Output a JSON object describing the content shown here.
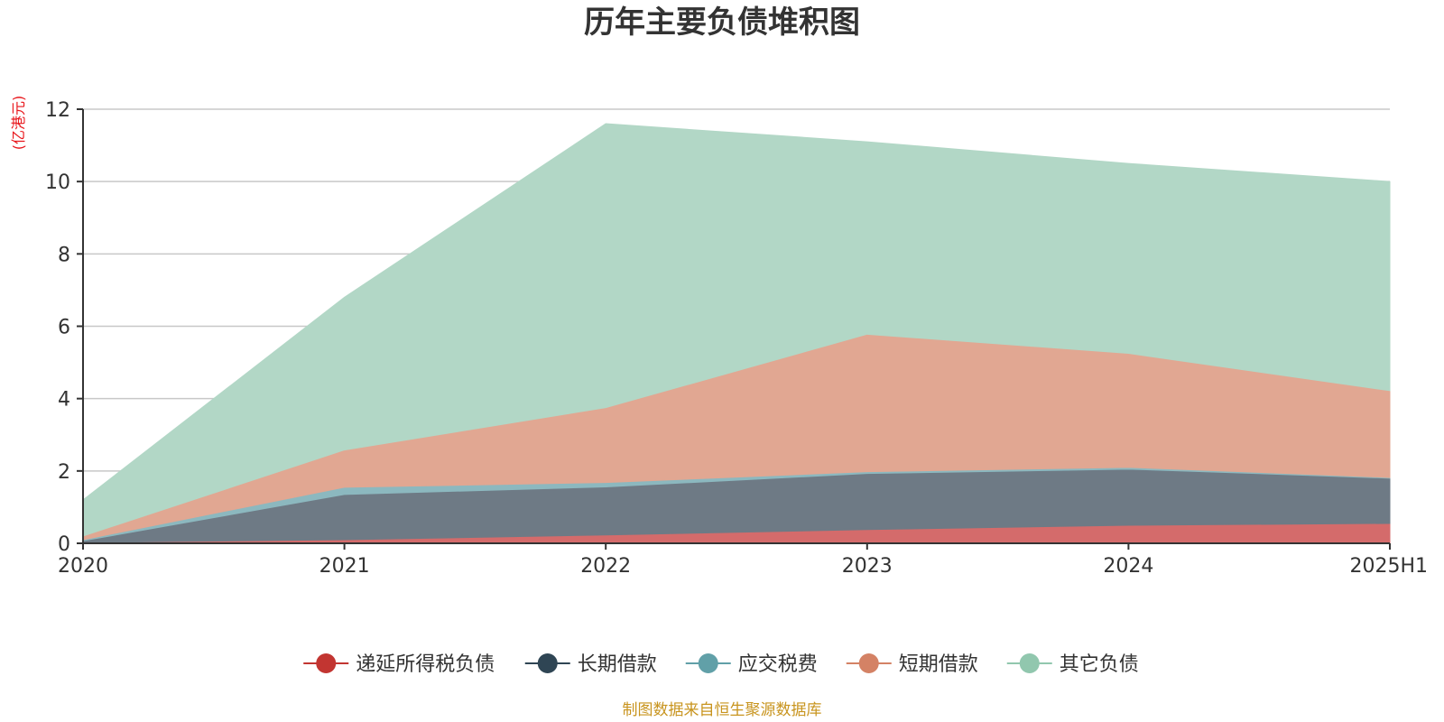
{
  "chart_data": {
    "type": "area",
    "stacked": true,
    "title": "历年主要负债堆积图",
    "ylabel": "(亿港元)",
    "xlabel": "",
    "categories": [
      "2020",
      "2021",
      "2022",
      "2023",
      "2024",
      "2025H1"
    ],
    "ylim": [
      0,
      12
    ],
    "yticks": [
      0,
      2,
      4,
      6,
      8,
      10,
      12
    ],
    "grid": true,
    "legend_position": "bottom",
    "series": [
      {
        "name": "递延所得税负债",
        "color": "#c23531",
        "fill": "#d46b6b",
        "values": [
          0.02,
          0.1,
          0.23,
          0.38,
          0.5,
          0.55
        ]
      },
      {
        "name": "长期借款",
        "color": "#2f4554",
        "fill": "#6e7a85",
        "values": [
          0.05,
          1.25,
          1.33,
          1.55,
          1.55,
          1.25
        ]
      },
      {
        "name": "应交税费",
        "color": "#61a0a8",
        "fill": "#8cb8bf",
        "values": [
          0.03,
          0.2,
          0.12,
          0.05,
          0.05,
          0.02
        ]
      },
      {
        "name": "短期借款",
        "color": "#d48265",
        "fill": "#e1a792",
        "values": [
          0.1,
          1.03,
          2.07,
          3.8,
          3.15,
          2.4
        ]
      },
      {
        "name": "其它负债",
        "color": "#91c7ae",
        "fill": "#b2d7c6",
        "values": [
          1.0,
          4.22,
          7.85,
          5.32,
          5.25,
          5.78
        ]
      }
    ],
    "source_note": "制图数据来自恒生聚源数据库"
  }
}
